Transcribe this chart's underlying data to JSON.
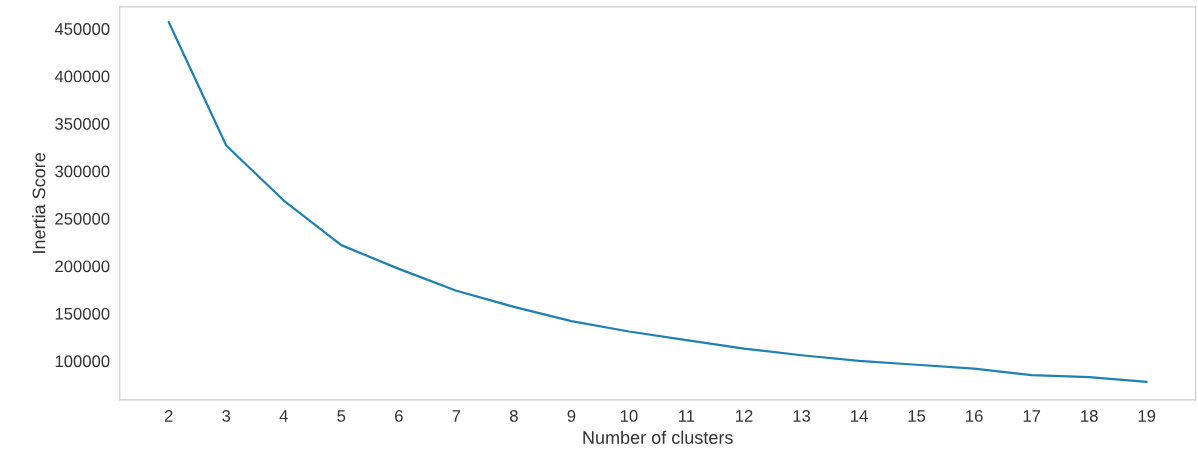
{
  "chart_data": {
    "type": "line",
    "xlabel": "Number of clusters",
    "ylabel": "Inertia Score",
    "x": [
      2,
      3,
      4,
      5,
      6,
      7,
      8,
      9,
      10,
      11,
      12,
      13,
      14,
      15,
      16,
      17,
      18,
      19
    ],
    "series": [
      {
        "color": "#1f80b4",
        "values": [
          457000,
          327000,
          269000,
          222000,
          197000,
          174000,
          157000,
          142000,
          131000,
          122000,
          113000,
          106000,
          100000,
          96000,
          92000,
          85000,
          83000,
          78000
        ]
      }
    ],
    "xlim": [
      1.15,
      19.85
    ],
    "xticks": [
      2,
      3,
      4,
      5,
      6,
      7,
      8,
      9,
      10,
      11,
      12,
      13,
      14,
      15,
      16,
      17,
      18,
      19
    ],
    "ylim": [
      59000,
      473000
    ],
    "yticks": [
      100000,
      150000,
      200000,
      250000,
      300000,
      350000,
      400000,
      450000
    ],
    "grid": false,
    "legend": false,
    "marker": "none",
    "line_style": "solid"
  }
}
